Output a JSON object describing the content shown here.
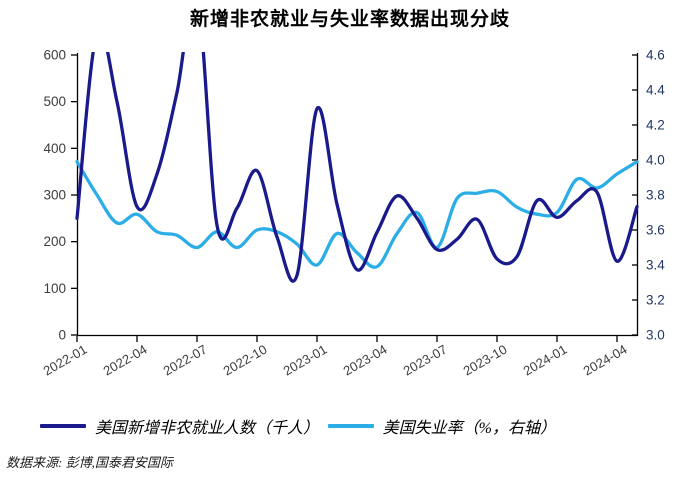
{
  "title": "新增非农就业与失业率数据出现分歧",
  "source": "数据来源: 彭博,国泰君安国际",
  "colors": {
    "payrolls_line": "#1A1A8C",
    "unemployment_line": "#2BAEE6",
    "axis_line": "#000000",
    "left_tick_label": "#3D3D3D",
    "right_tick_label": "#203864",
    "x_tick_label": "#3D3D3D"
  },
  "chart_data": {
    "type": "line",
    "title": "新增非农就业与失业率数据出现分歧",
    "x_categories": [
      "2022-01",
      "2022-02",
      "2022-03",
      "2022-04",
      "2022-05",
      "2022-06",
      "2022-07",
      "2022-08",
      "2022-09",
      "2022-10",
      "2022-11",
      "2022-12",
      "2023-01",
      "2023-02",
      "2023-03",
      "2023-04",
      "2023-05",
      "2023-06",
      "2023-07",
      "2023-08",
      "2023-09",
      "2023-10",
      "2023-11",
      "2023-12",
      "2024-01",
      "2024-02",
      "2024-03",
      "2024-04",
      "2024-05"
    ],
    "x_tick_labels": [
      "2022-01",
      "2022-04",
      "2022-07",
      "2022-10",
      "2023-01",
      "2023-04",
      "2023-07",
      "2023-10",
      "2024-01",
      "2024-04"
    ],
    "x_tick_every_n_months": 3,
    "left_axis": {
      "min": 0,
      "max": 600,
      "ticks": [
        0,
        100,
        200,
        300,
        400,
        500,
        600
      ]
    },
    "right_axis": {
      "min": 3.0,
      "max": 4.6,
      "ticks": [
        3.0,
        3.2,
        3.4,
        3.6,
        3.8,
        4.0,
        4.2,
        4.4,
        4.6
      ]
    },
    "grid": false,
    "legend_position": "bottom",
    "clip_note": "payroll peaks 2022-02 and 2022-07 exceed left axis max and are clipped at plot top",
    "series": [
      {
        "name": "美国新增非农就业人数（千人）",
        "axis": "left",
        "color": "#1A1A8C",
        "values": [
          250,
          650,
          500,
          275,
          345,
          520,
          730,
          235,
          272,
          352,
          210,
          128,
          485,
          280,
          140,
          220,
          298,
          250,
          183,
          205,
          248,
          163,
          168,
          288,
          252,
          288,
          306,
          158,
          275
        ]
      },
      {
        "name": "美国失业率（%，右轴）",
        "axis": "right",
        "color": "#2BAEE6",
        "values": [
          3.99,
          3.8,
          3.64,
          3.69,
          3.59,
          3.57,
          3.5,
          3.59,
          3.5,
          3.6,
          3.59,
          3.52,
          3.4,
          3.58,
          3.47,
          3.39,
          3.58,
          3.7,
          3.5,
          3.78,
          3.81,
          3.82,
          3.73,
          3.69,
          3.7,
          3.89,
          3.84,
          3.92,
          3.99
        ]
      }
    ]
  }
}
